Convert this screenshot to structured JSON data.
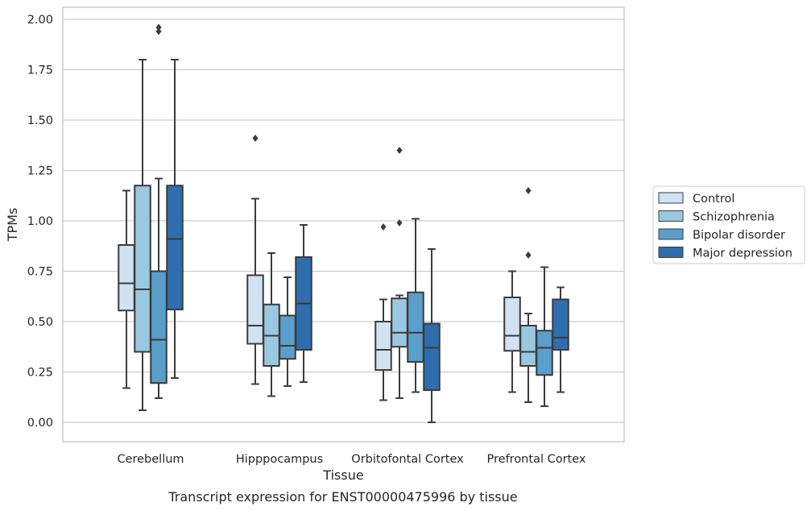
{
  "caption": "Transcript expression for ENST00000475996 by tissue",
  "chart_data": {
    "type": "boxplot",
    "xlabel": "Tissue",
    "ylabel": "TPMs",
    "ylim": [
      -0.09,
      2.06
    ],
    "yticks": [
      "0.00",
      "0.25",
      "0.50",
      "0.75",
      "1.00",
      "1.25",
      "1.50",
      "1.75",
      "2.00"
    ],
    "grid": true,
    "legend_placement": "right",
    "categories": [
      "Cerebellum",
      "Hipppocampus",
      "Orbitofontal Cortex",
      "Prefrontal Cortex"
    ],
    "series": [
      {
        "name": "Control",
        "color": "#d1e2f2",
        "boxes": [
          {
            "whislo": 0.17,
            "q1": 0.555,
            "med": 0.69,
            "q3": 0.88,
            "whishi": 1.15,
            "fliers": []
          },
          {
            "whislo": 0.19,
            "q1": 0.39,
            "med": 0.48,
            "q3": 0.73,
            "whishi": 1.11,
            "fliers": [
              1.41
            ]
          },
          {
            "whislo": 0.11,
            "q1": 0.26,
            "med": 0.36,
            "q3": 0.5,
            "whishi": 0.61,
            "fliers": [
              0.97
            ]
          },
          {
            "whislo": 0.15,
            "q1": 0.355,
            "med": 0.43,
            "q3": 0.62,
            "whishi": 0.75,
            "fliers": []
          }
        ]
      },
      {
        "name": "Schizophrenia",
        "color": "#9ac8e0",
        "boxes": [
          {
            "whislo": 0.06,
            "q1": 0.35,
            "med": 0.66,
            "q3": 1.175,
            "whishi": 1.8,
            "fliers": []
          },
          {
            "whislo": 0.13,
            "q1": 0.28,
            "med": 0.43,
            "q3": 0.585,
            "whishi": 0.84,
            "fliers": []
          },
          {
            "whislo": 0.12,
            "q1": 0.375,
            "med": 0.445,
            "q3": 0.615,
            "whishi": 0.63,
            "fliers": [
              0.99,
              1.35
            ]
          },
          {
            "whislo": 0.1,
            "q1": 0.28,
            "med": 0.35,
            "q3": 0.48,
            "whishi": 0.54,
            "fliers": [
              0.83,
              1.15
            ]
          }
        ]
      },
      {
        "name": "Bipolar disorder",
        "color": "#5a9ecb",
        "boxes": [
          {
            "whislo": 0.12,
            "q1": 0.195,
            "med": 0.41,
            "q3": 0.75,
            "whishi": 1.21,
            "fliers": [
              1.94,
              1.96
            ]
          },
          {
            "whislo": 0.18,
            "q1": 0.315,
            "med": 0.38,
            "q3": 0.53,
            "whishi": 0.72,
            "fliers": []
          },
          {
            "whislo": 0.15,
            "q1": 0.3,
            "med": 0.445,
            "q3": 0.645,
            "whishi": 1.01,
            "fliers": []
          },
          {
            "whislo": 0.08,
            "q1": 0.235,
            "med": 0.37,
            "q3": 0.455,
            "whishi": 0.77,
            "fliers": []
          }
        ]
      },
      {
        "name": "Major depression",
        "color": "#2e6eae",
        "boxes": [
          {
            "whislo": 0.22,
            "q1": 0.56,
            "med": 0.91,
            "q3": 1.175,
            "whishi": 1.8,
            "fliers": []
          },
          {
            "whislo": 0.2,
            "q1": 0.36,
            "med": 0.59,
            "q3": 0.82,
            "whishi": 0.98,
            "fliers": []
          },
          {
            "whislo": 0.0,
            "q1": 0.16,
            "med": 0.37,
            "q3": 0.49,
            "whishi": 0.86,
            "fliers": []
          },
          {
            "whislo": 0.15,
            "q1": 0.36,
            "med": 0.42,
            "q3": 0.61,
            "whishi": 0.67,
            "fliers": []
          }
        ]
      }
    ]
  }
}
